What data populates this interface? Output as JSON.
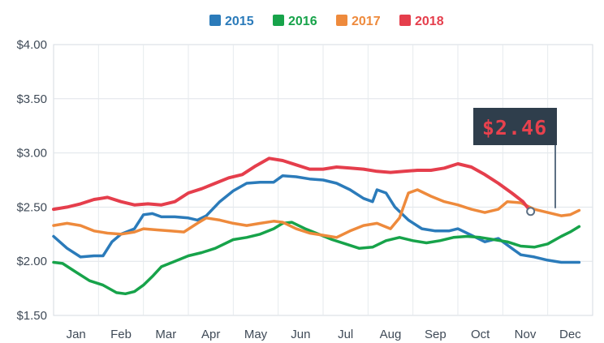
{
  "chart_data": {
    "type": "line",
    "title": "",
    "xlabel": "",
    "ylabel": "",
    "ylim": [
      1.5,
      4.0
    ],
    "xlim": [
      0,
      12
    ],
    "y_ticks": [
      {
        "value": 4.0,
        "label": "$4.00"
      },
      {
        "value": 3.5,
        "label": "$3.50"
      },
      {
        "value": 3.0,
        "label": "$3.00"
      },
      {
        "value": 2.5,
        "label": "$2.50"
      },
      {
        "value": 2.0,
        "label": "$2.00"
      },
      {
        "value": 1.5,
        "label": "$1.50"
      }
    ],
    "categories": [
      "Jan",
      "Feb",
      "Mar",
      "Apr",
      "May",
      "Jun",
      "Jul",
      "Aug",
      "Sep",
      "Oct",
      "Nov",
      "Dec"
    ],
    "grid": {
      "horizontal": true,
      "vertical": true
    },
    "legend_position": "top-center",
    "series": [
      {
        "name": "2015",
        "color": "#2b7bba",
        "points": [
          [
            0.0,
            2.23
          ],
          [
            0.3,
            2.12
          ],
          [
            0.6,
            2.04
          ],
          [
            0.9,
            2.05
          ],
          [
            1.1,
            2.05
          ],
          [
            1.3,
            2.18
          ],
          [
            1.5,
            2.25
          ],
          [
            1.8,
            2.3
          ],
          [
            2.0,
            2.43
          ],
          [
            2.2,
            2.44
          ],
          [
            2.4,
            2.41
          ],
          [
            2.7,
            2.41
          ],
          [
            3.0,
            2.4
          ],
          [
            3.2,
            2.38
          ],
          [
            3.4,
            2.42
          ],
          [
            3.7,
            2.55
          ],
          [
            4.0,
            2.65
          ],
          [
            4.3,
            2.72
          ],
          [
            4.6,
            2.73
          ],
          [
            4.9,
            2.73
          ],
          [
            5.1,
            2.79
          ],
          [
            5.4,
            2.78
          ],
          [
            5.7,
            2.76
          ],
          [
            6.0,
            2.75
          ],
          [
            6.3,
            2.72
          ],
          [
            6.6,
            2.66
          ],
          [
            6.9,
            2.58
          ],
          [
            7.1,
            2.55
          ],
          [
            7.2,
            2.66
          ],
          [
            7.4,
            2.63
          ],
          [
            7.6,
            2.5
          ],
          [
            7.9,
            2.38
          ],
          [
            8.2,
            2.3
          ],
          [
            8.5,
            2.28
          ],
          [
            8.8,
            2.28
          ],
          [
            9.0,
            2.3
          ],
          [
            9.3,
            2.24
          ],
          [
            9.6,
            2.18
          ],
          [
            9.9,
            2.21
          ],
          [
            10.2,
            2.12
          ],
          [
            10.4,
            2.06
          ],
          [
            10.7,
            2.04
          ],
          [
            11.0,
            2.01
          ],
          [
            11.3,
            1.99
          ],
          [
            11.7,
            1.99
          ]
        ]
      },
      {
        "name": "2016",
        "color": "#17a34a",
        "points": [
          [
            0.0,
            1.99
          ],
          [
            0.2,
            1.98
          ],
          [
            0.5,
            1.9
          ],
          [
            0.8,
            1.82
          ],
          [
            1.1,
            1.78
          ],
          [
            1.4,
            1.71
          ],
          [
            1.6,
            1.7
          ],
          [
            1.8,
            1.72
          ],
          [
            2.0,
            1.78
          ],
          [
            2.2,
            1.86
          ],
          [
            2.4,
            1.95
          ],
          [
            2.7,
            2.0
          ],
          [
            3.0,
            2.05
          ],
          [
            3.3,
            2.08
          ],
          [
            3.6,
            2.12
          ],
          [
            4.0,
            2.2
          ],
          [
            4.3,
            2.22
          ],
          [
            4.6,
            2.25
          ],
          [
            4.9,
            2.3
          ],
          [
            5.1,
            2.35
          ],
          [
            5.3,
            2.36
          ],
          [
            5.6,
            2.3
          ],
          [
            5.9,
            2.25
          ],
          [
            6.2,
            2.2
          ],
          [
            6.5,
            2.16
          ],
          [
            6.8,
            2.12
          ],
          [
            7.1,
            2.13
          ],
          [
            7.4,
            2.19
          ],
          [
            7.7,
            2.22
          ],
          [
            8.0,
            2.19
          ],
          [
            8.3,
            2.17
          ],
          [
            8.6,
            2.19
          ],
          [
            8.9,
            2.22
          ],
          [
            9.2,
            2.23
          ],
          [
            9.5,
            2.22
          ],
          [
            9.8,
            2.2
          ],
          [
            10.1,
            2.18
          ],
          [
            10.4,
            2.14
          ],
          [
            10.7,
            2.13
          ],
          [
            11.0,
            2.16
          ],
          [
            11.3,
            2.23
          ],
          [
            11.5,
            2.27
          ],
          [
            11.7,
            2.32
          ]
        ]
      },
      {
        "name": "2017",
        "color": "#ee8a3c",
        "points": [
          [
            0.0,
            2.33
          ],
          [
            0.3,
            2.35
          ],
          [
            0.6,
            2.33
          ],
          [
            0.9,
            2.28
          ],
          [
            1.2,
            2.26
          ],
          [
            1.5,
            2.25
          ],
          [
            1.8,
            2.27
          ],
          [
            2.0,
            2.3
          ],
          [
            2.3,
            2.29
          ],
          [
            2.6,
            2.28
          ],
          [
            2.9,
            2.27
          ],
          [
            3.2,
            2.35
          ],
          [
            3.4,
            2.4
          ],
          [
            3.7,
            2.38
          ],
          [
            4.0,
            2.35
          ],
          [
            4.3,
            2.33
          ],
          [
            4.6,
            2.35
          ],
          [
            4.9,
            2.37
          ],
          [
            5.1,
            2.36
          ],
          [
            5.4,
            2.3
          ],
          [
            5.7,
            2.26
          ],
          [
            6.0,
            2.24
          ],
          [
            6.3,
            2.22
          ],
          [
            6.6,
            2.28
          ],
          [
            6.9,
            2.33
          ],
          [
            7.2,
            2.35
          ],
          [
            7.5,
            2.3
          ],
          [
            7.7,
            2.4
          ],
          [
            7.9,
            2.63
          ],
          [
            8.1,
            2.66
          ],
          [
            8.4,
            2.6
          ],
          [
            8.7,
            2.55
          ],
          [
            9.0,
            2.52
          ],
          [
            9.3,
            2.48
          ],
          [
            9.6,
            2.45
          ],
          [
            9.9,
            2.48
          ],
          [
            10.1,
            2.55
          ],
          [
            10.4,
            2.54
          ],
          [
            10.7,
            2.48
          ],
          [
            11.0,
            2.45
          ],
          [
            11.3,
            2.42
          ],
          [
            11.5,
            2.43
          ],
          [
            11.7,
            2.47
          ]
        ]
      },
      {
        "name": "2018",
        "color": "#e53e4c",
        "points": [
          [
            0.0,
            2.48
          ],
          [
            0.3,
            2.5
          ],
          [
            0.6,
            2.53
          ],
          [
            0.9,
            2.57
          ],
          [
            1.2,
            2.59
          ],
          [
            1.5,
            2.55
          ],
          [
            1.8,
            2.52
          ],
          [
            2.1,
            2.53
          ],
          [
            2.4,
            2.52
          ],
          [
            2.7,
            2.55
          ],
          [
            3.0,
            2.63
          ],
          [
            3.3,
            2.67
          ],
          [
            3.6,
            2.72
          ],
          [
            3.9,
            2.77
          ],
          [
            4.2,
            2.8
          ],
          [
            4.5,
            2.88
          ],
          [
            4.8,
            2.95
          ],
          [
            5.1,
            2.93
          ],
          [
            5.4,
            2.89
          ],
          [
            5.7,
            2.85
          ],
          [
            6.0,
            2.85
          ],
          [
            6.3,
            2.87
          ],
          [
            6.6,
            2.86
          ],
          [
            6.9,
            2.85
          ],
          [
            7.2,
            2.83
          ],
          [
            7.5,
            2.82
          ],
          [
            7.8,
            2.83
          ],
          [
            8.1,
            2.84
          ],
          [
            8.4,
            2.84
          ],
          [
            8.7,
            2.86
          ],
          [
            9.0,
            2.9
          ],
          [
            9.3,
            2.87
          ],
          [
            9.6,
            2.8
          ],
          [
            9.9,
            2.72
          ],
          [
            10.2,
            2.63
          ],
          [
            10.45,
            2.55
          ],
          [
            10.62,
            2.46
          ]
        ]
      }
    ],
    "callout": {
      "label": "$2.46",
      "series": "2018",
      "x": 10.62,
      "y": 2.46,
      "background": "#2f3e4c",
      "text_color": "#e8414d"
    }
  }
}
